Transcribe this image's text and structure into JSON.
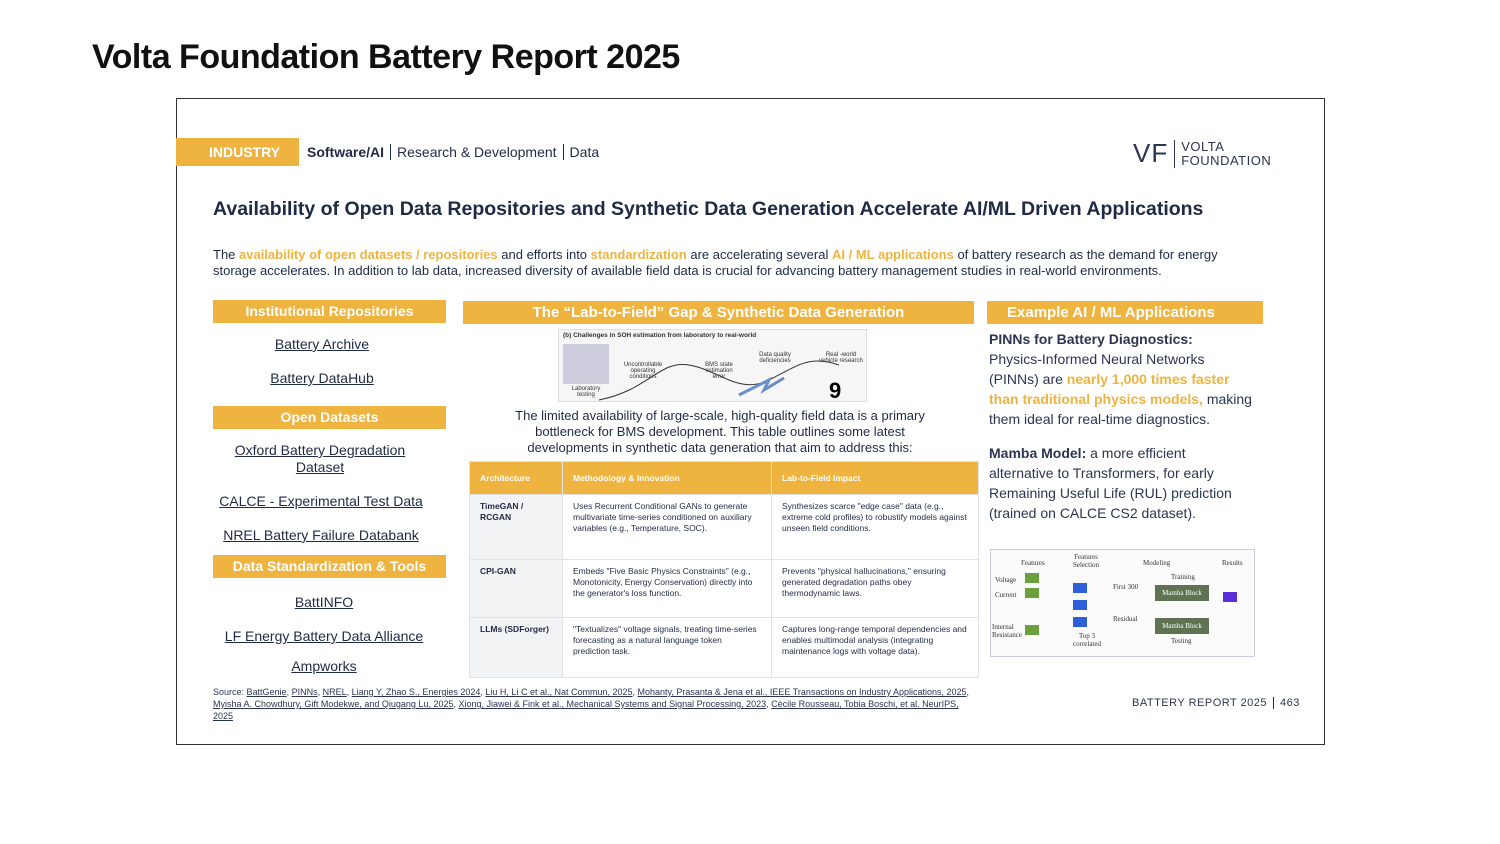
{
  "page_title": "Volta Foundation Battery Report 2025",
  "header": {
    "section": "INDUSTRY",
    "crumbs": [
      "Software/AI",
      "Research & Development",
      "Data"
    ],
    "logo_mark": "VF",
    "logo_name_1": "VOLTA",
    "logo_name_2": "FOUNDATION"
  },
  "headline": "Availability of Open Data Repositories and Synthetic Data Generation Accelerate AI/ML Driven Applications",
  "intro": {
    "p1": "The ",
    "h1": "availability of open datasets / repositories",
    "p2": " and efforts into ",
    "h2": "standardization",
    "p3": " are accelerating several ",
    "h3": "AI / ML applications",
    "p4": " of battery research as the demand for energy storage accelerates. In addition to lab data, increased diversity of available field data is crucial for advancing battery management studies in real-world environments."
  },
  "left": {
    "institutional": {
      "title": "Institutional Repositories",
      "links": [
        "Battery Archive",
        "Battery DataHub"
      ]
    },
    "open": {
      "title": "Open Datasets",
      "links": [
        "Oxford Battery Degradation Dataset",
        "CALCE - Experimental Test Data",
        "NREL Battery Failure Databank"
      ]
    },
    "tools": {
      "title": "Data Standardization & Tools",
      "links": [
        "BattINFO",
        "LF Energy Battery Data Alliance",
        "Ampworks"
      ]
    }
  },
  "middle": {
    "title": "The “Lab-to-Field” Gap & Synthetic Data Generation",
    "figure": {
      "caption": "(b) Challenges in SOH estimation from laboratory to real-world",
      "labels": [
        "Laboratory testing",
        "Uncontrollable operating conditions",
        "BMS state estimation error",
        "Data quality deficiencies",
        "Real -world vehicle research"
      ]
    },
    "text": "The limited availability of large-scale, high-quality field data is a primary bottleneck for BMS development. This table outlines some latest developments in synthetic data generation that aim to address this:",
    "table": {
      "headers": [
        "Architecture",
        "Methodology & Innovation",
        "Lab-to-Field Impact"
      ],
      "rows": [
        [
          "TimeGAN / RCGAN",
          "Uses Recurrent Conditional GANs to generate multivariate time-series conditioned on auxiliary variables (e.g., Temperature, SOC).",
          "Synthesizes scarce \"edge case\" data (e.g., extreme cold profiles) to robustify models against unseen field conditions."
        ],
        [
          "CPI-GAN",
          "Embeds \"Five Basic Physics Constraints\" (e.g., Monotonicity, Energy Conservation) directly into the generator's loss function.",
          "Prevents \"physical hallucinations,\" ensuring generated degradation paths obey thermodynamic laws."
        ],
        [
          "LLMs (SDForger)",
          "\"Textualizes\" voltage signals, treating time-series forecasting as a natural language token prediction task.",
          "Captures long-range temporal dependencies and enables multimodal analysis (integrating maintenance logs with voltage data)."
        ]
      ]
    }
  },
  "right": {
    "title": "Example AI / ML Applications",
    "pinns": {
      "bold": "PINNs for Battery Diagnostics:",
      "p1": "Physics-Informed Neural Networks (PINNs) are ",
      "hl": "nearly 1,000 times faster than traditional physics models,",
      "p2": " making them ideal for real-time diagnostics."
    },
    "mamba": {
      "bold": "Mamba Model:",
      "p1": " a more efficient alternative to Transformers, for early Remaining Useful Life (RUL) prediction (trained on CALCE CS2 dataset)."
    },
    "diagram": {
      "cols": [
        "Features",
        "Features Selection",
        "Modeling",
        "Results"
      ],
      "features": [
        "Voltage",
        "Current",
        "Internal Resistance"
      ],
      "top3": "Top 3 correlated",
      "first": "First 300",
      "residual": "Residual",
      "training": "Training",
      "testing": "Testing",
      "block": "Mamba Block"
    }
  },
  "source": {
    "label": "Source: ",
    "refs": [
      "BattGenie",
      "PINNs",
      "NREL",
      "Liang Y, Zhao S., Energies 2024",
      "Liu H, Li C et al., Nat Commun, 2025",
      "Mohanty, Prasanta & Jena et al., IEEE Transactions on Industry Applications, 2025",
      "Myisha A. Chowdhury, Gift Modekwe, and Qiugang Lu, 2025",
      "Xiong, Jiawei & Fink et al., Mechanical Systems and Signal Processing, 2023",
      "Cécile Rousseau, Tobia Boschi, et al. NeurIPS, 2025"
    ]
  },
  "footer": {
    "report": "BATTERY REPORT 2025",
    "page": "463"
  },
  "colors": {
    "accent": "#efb33f",
    "navy": "#1f2a44"
  }
}
